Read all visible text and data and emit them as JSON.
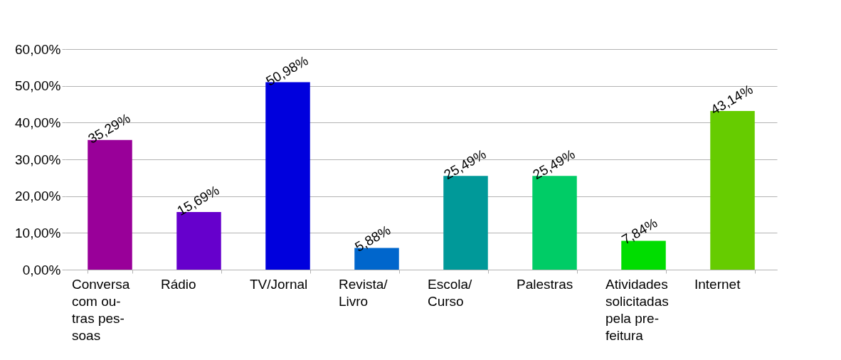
{
  "chart_data": {
    "type": "bar",
    "categories": [
      "Conversa\ncom ou-\ntras pes-\nsoas",
      "Rádio",
      "TV/Jornal",
      "Revista/\nLivro",
      "Escola/\nCurso",
      "Palestras",
      "Atividades\nsolicitadas\npela pre-\nfeitura",
      "Internet"
    ],
    "values": [
      35.29,
      15.69,
      50.98,
      5.88,
      25.49,
      25.49,
      7.84,
      43.14
    ],
    "colors": [
      "#990099",
      "#6600cc",
      "#0000dd",
      "#0066cc",
      "#009999",
      "#00cc66",
      "#00dd00",
      "#66cc00"
    ],
    "value_labels": [
      "35,29%",
      "15,69%",
      "50,98%",
      "5,88%",
      "25,49%",
      "25,49%",
      "7,84%",
      "43,14%"
    ],
    "ylim": [
      0,
      60
    ],
    "yticks": [
      {
        "value": 0,
        "label": "0,00%"
      },
      {
        "value": 10,
        "label": "10,00%"
      },
      {
        "value": 20,
        "label": "20,00%"
      },
      {
        "value": 30,
        "label": "30,00%"
      },
      {
        "value": 40,
        "label": "40,00%"
      },
      {
        "value": 50,
        "label": "50,00%"
      },
      {
        "value": 60,
        "label": "60,00%"
      }
    ],
    "grid": "y",
    "legend": false
  }
}
